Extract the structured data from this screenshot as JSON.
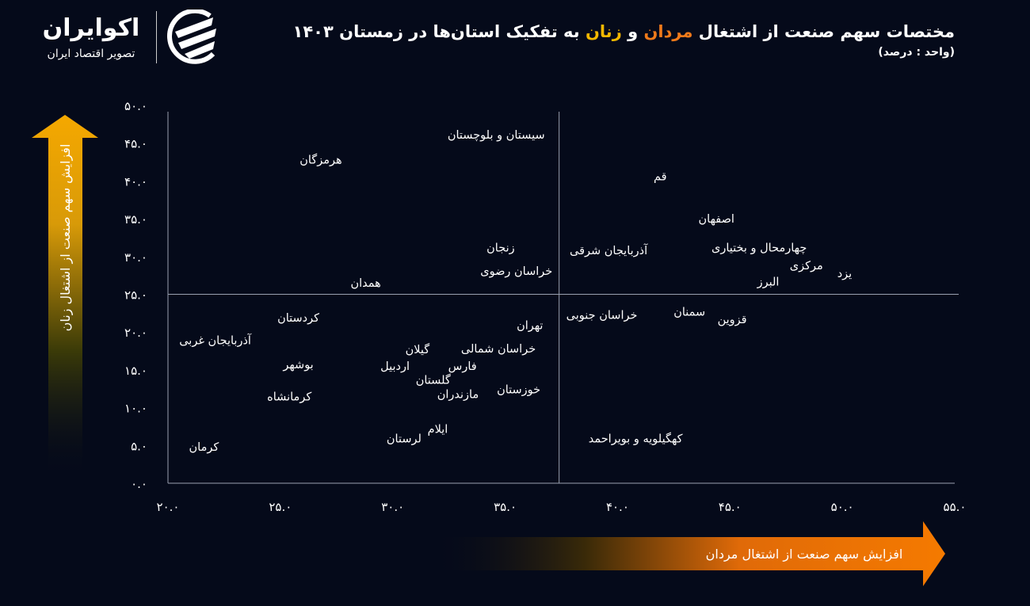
{
  "header": {
    "title_parts": [
      "مختصات سهم صنعت از اشتغال ",
      "مردان",
      " و ",
      "زنان",
      " به تفکیک استان‌ها در زمستان ۱۴۰۳"
    ],
    "subtitle": "(واحد : درصد)"
  },
  "logo": {
    "name": "اکوایران",
    "tagline": "تصویر اقتصاد ایران"
  },
  "colors": {
    "background": "#050a1a",
    "men": "#f07a1a",
    "women": "#f5b800",
    "axis": "#9aa0b0"
  },
  "chart_data": {
    "type": "scatter",
    "marker": "label-only",
    "xlim": [
      20,
      55
    ],
    "ylim": [
      0,
      50
    ],
    "xticks": [
      20,
      25,
      30,
      35,
      40,
      45,
      50,
      55
    ],
    "yticks": [
      0,
      5,
      10,
      15,
      20,
      25,
      30,
      35,
      40,
      45,
      50
    ],
    "xtick_labels": [
      "۲۰.۰",
      "۲۵.۰",
      "۳۰.۰",
      "۳۵.۰",
      "۴۰.۰",
      "۴۵.۰",
      "۵۰.۰",
      "۵۵.۰"
    ],
    "ytick_labels": [
      "۰.۰",
      "۵.۰",
      "۱۰.۰",
      "۱۵.۰",
      "۲۰.۰",
      "۲۵.۰",
      "۳۰.۰",
      "۳۵.۰",
      "۴۰.۰",
      "۴۵.۰",
      "۵۰.۰"
    ],
    "xlabel": "افزایش سهم صنعت از اشتغال مردان",
    "ylabel": "افزایش سهم صنعت از اشتغال زنان",
    "quadrant_lines": {
      "x": 37.4,
      "y": 25
    },
    "grid": false,
    "points": [
      {
        "label": "سیستان و بلوچستان",
        "x": 34.6,
        "y": 46.1
      },
      {
        "label": "هرمزگان",
        "x": 26.8,
        "y": 42.8
      },
      {
        "label": "قم",
        "x": 41.9,
        "y": 40.6
      },
      {
        "label": "اصفهان",
        "x": 44.4,
        "y": 35.0
      },
      {
        "label": "چهارمحال و بختیاری",
        "x": 46.3,
        "y": 31.2
      },
      {
        "label": "آذربایجان شرقی",
        "x": 39.6,
        "y": 30.8
      },
      {
        "label": "زنجان",
        "x": 34.8,
        "y": 31.2
      },
      {
        "label": "مرکزی",
        "x": 48.4,
        "y": 28.8
      },
      {
        "label": "یزد",
        "x": 50.1,
        "y": 27.8
      },
      {
        "label": "البرز",
        "x": 46.7,
        "y": 26.7
      },
      {
        "label": "خراسان رضوی",
        "x": 35.5,
        "y": 28.1
      },
      {
        "label": "همدان",
        "x": 28.8,
        "y": 26.5
      },
      {
        "label": "خراسان جنوبی",
        "x": 39.3,
        "y": 22.3
      },
      {
        "label": "سمنان",
        "x": 43.2,
        "y": 22.7
      },
      {
        "label": "قزوین",
        "x": 45.1,
        "y": 21.7
      },
      {
        "label": "کردستان",
        "x": 25.8,
        "y": 21.9
      },
      {
        "label": "تهران",
        "x": 36.1,
        "y": 20.9
      },
      {
        "label": "آذربایجان غربی",
        "x": 22.1,
        "y": 18.9
      },
      {
        "label": "گیلان",
        "x": 31.1,
        "y": 17.7
      },
      {
        "label": "خراسان شمالی",
        "x": 34.7,
        "y": 17.8
      },
      {
        "label": "بوشهر",
        "x": 25.8,
        "y": 15.7
      },
      {
        "label": "اردبیل",
        "x": 30.1,
        "y": 15.5
      },
      {
        "label": "فارس",
        "x": 33.1,
        "y": 15.5
      },
      {
        "label": "گلستان",
        "x": 31.8,
        "y": 13.7
      },
      {
        "label": "خوزستان",
        "x": 35.6,
        "y": 12.4
      },
      {
        "label": "مازندران",
        "x": 32.9,
        "y": 11.8
      },
      {
        "label": "کرمانشاه",
        "x": 25.4,
        "y": 11.5
      },
      {
        "label": "ایلام",
        "x": 32.0,
        "y": 7.2
      },
      {
        "label": "لرستان",
        "x": 30.5,
        "y": 5.9
      },
      {
        "label": "کهگیلویه و بویراحمد",
        "x": 40.8,
        "y": 5.9
      },
      {
        "label": "کرمان",
        "x": 21.6,
        "y": 4.8
      }
    ]
  }
}
